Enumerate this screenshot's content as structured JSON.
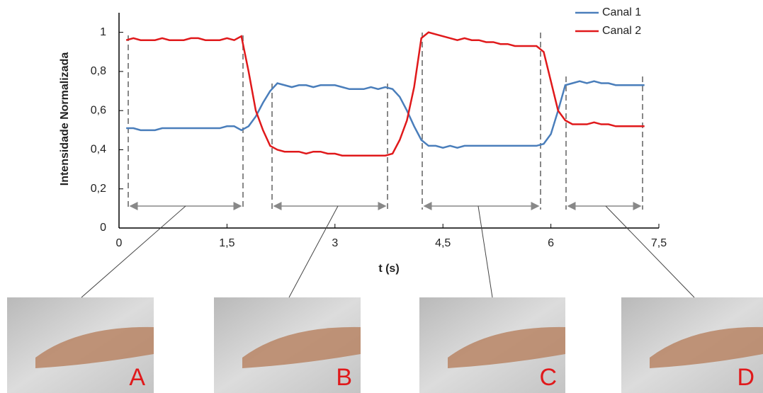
{
  "chart_data": {
    "type": "line",
    "x_label": "t (s)",
    "y_label": "Intensidade Normalizada",
    "x": [
      0.1,
      0.2,
      0.3,
      0.4,
      0.5,
      0.6,
      0.7,
      0.8,
      0.9,
      1.0,
      1.1,
      1.2,
      1.3,
      1.4,
      1.5,
      1.6,
      1.7,
      1.8,
      1.9,
      2.0,
      2.1,
      2.2,
      2.3,
      2.4,
      2.5,
      2.6,
      2.7,
      2.8,
      2.9,
      3.0,
      3.1,
      3.2,
      3.3,
      3.4,
      3.5,
      3.6,
      3.7,
      3.8,
      3.9,
      4.0,
      4.1,
      4.2,
      4.3,
      4.4,
      4.5,
      4.6,
      4.7,
      4.8,
      4.9,
      5.0,
      5.1,
      5.2,
      5.3,
      5.4,
      5.5,
      5.6,
      5.7,
      5.8,
      5.9,
      6.0,
      6.1,
      6.2,
      6.3,
      6.4,
      6.5,
      6.6,
      6.7,
      6.8,
      6.9,
      7.0,
      7.1,
      7.2,
      7.3
    ],
    "series": [
      {
        "name": "Canal 1",
        "color": "#4a7ebb",
        "values": [
          0.51,
          0.51,
          0.5,
          0.5,
          0.5,
          0.51,
          0.51,
          0.51,
          0.51,
          0.51,
          0.51,
          0.51,
          0.51,
          0.51,
          0.52,
          0.52,
          0.5,
          0.52,
          0.57,
          0.64,
          0.7,
          0.74,
          0.73,
          0.72,
          0.73,
          0.73,
          0.72,
          0.73,
          0.73,
          0.73,
          0.72,
          0.71,
          0.71,
          0.71,
          0.72,
          0.71,
          0.72,
          0.71,
          0.67,
          0.6,
          0.52,
          0.45,
          0.42,
          0.42,
          0.41,
          0.42,
          0.41,
          0.42,
          0.42,
          0.42,
          0.42,
          0.42,
          0.42,
          0.42,
          0.42,
          0.42,
          0.42,
          0.42,
          0.43,
          0.48,
          0.6,
          0.73,
          0.74,
          0.75,
          0.74,
          0.75,
          0.74,
          0.74,
          0.73,
          0.73,
          0.73,
          0.73,
          0.73
        ]
      },
      {
        "name": "Canal 2",
        "color": "#e0191b",
        "values": [
          0.96,
          0.97,
          0.96,
          0.96,
          0.96,
          0.97,
          0.96,
          0.96,
          0.96,
          0.97,
          0.97,
          0.96,
          0.96,
          0.96,
          0.97,
          0.96,
          0.98,
          0.8,
          0.6,
          0.5,
          0.42,
          0.4,
          0.39,
          0.39,
          0.39,
          0.38,
          0.39,
          0.39,
          0.38,
          0.38,
          0.37,
          0.37,
          0.37,
          0.37,
          0.37,
          0.37,
          0.37,
          0.38,
          0.45,
          0.55,
          0.72,
          0.97,
          1.0,
          0.99,
          0.98,
          0.97,
          0.96,
          0.97,
          0.96,
          0.96,
          0.95,
          0.95,
          0.94,
          0.94,
          0.93,
          0.93,
          0.93,
          0.93,
          0.9,
          0.75,
          0.6,
          0.55,
          0.53,
          0.53,
          0.53,
          0.54,
          0.53,
          0.53,
          0.52,
          0.52,
          0.52,
          0.52,
          0.52
        ]
      }
    ],
    "xlim": [
      0,
      7.5
    ],
    "xticks": [
      0,
      {
        "value": 1.5,
        "label": "1,5"
      },
      3,
      {
        "value": 4.5,
        "label": "4,5"
      },
      6,
      {
        "value": 7.5,
        "label": "7,5"
      }
    ],
    "ylim": [
      0,
      1.1
    ],
    "yticks": [
      0,
      {
        "value": 0.2,
        "label": "0,2"
      },
      {
        "value": 0.4,
        "label": "0,4"
      },
      {
        "value": 0.6,
        "label": "0,6"
      },
      {
        "value": 0.8,
        "label": "0,8"
      },
      1
    ],
    "legend": "top-right"
  },
  "panels": {
    "labels": [
      "A",
      "B",
      "C",
      "D"
    ]
  }
}
